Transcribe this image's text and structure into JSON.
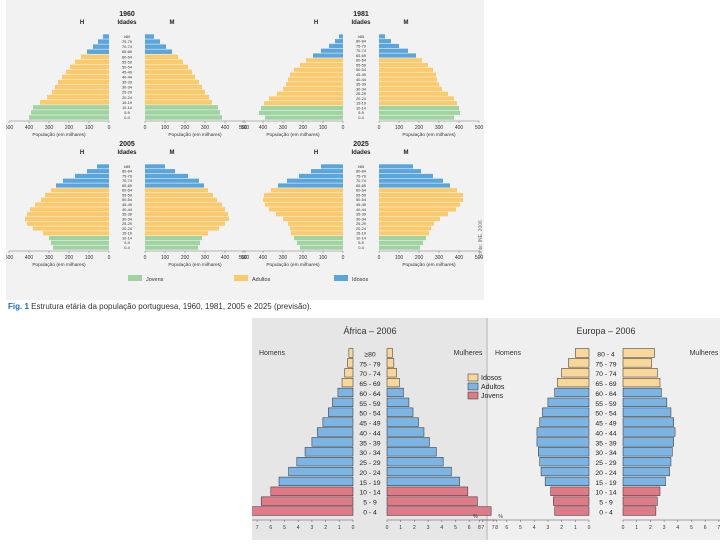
{
  "caption": {
    "label": "Fig. 1",
    "text": "Estrutura etária da população portuguesa, 1960, 1981, 2005 e 2025 (previsão)."
  },
  "credit": "Fonte: INE, 2006",
  "colors": {
    "jovens": "#9fd4a0",
    "adultos": "#fcc96b",
    "idosos": "#5aa5dc",
    "africa_jovens": "#e07a86",
    "africa_adultos": "#7cb4e4",
    "africa_idosos": "#f9d798"
  },
  "chart_data": [
    {
      "type": "bar",
      "subtype": "population-pyramid",
      "title": "1960",
      "header_left": "H",
      "header_center": "Idades",
      "header_right": "M",
      "xlabel_left": "População (em milhares)",
      "xlabel_right": "População (em milhares)",
      "xlim": [
        0,
        500
      ],
      "ticks_left": [
        "500",
        "400",
        "300",
        "200",
        "100",
        "0"
      ],
      "ticks_right": [
        "0",
        "100",
        "200",
        "300",
        "400",
        "500"
      ],
      "categories": [
        "0-4",
        "5-9",
        "10-14",
        "15-19",
        "20-24",
        "25-29",
        "30-34",
        "35-39",
        "40-44",
        "45-49",
        "50-54",
        "55-59",
        "60-64",
        "65-69",
        "70-74",
        "75-79",
        "≥80"
      ],
      "category_labels": [
        "0-4",
        "5-9",
        "10-14",
        "15-19",
        "20-24",
        "25-29",
        "30-34",
        "35-39",
        "40-44",
        "45-49",
        "50-54",
        "55-59",
        "60-64",
        "65-69",
        "70-74",
        "75-79",
        "≥80"
      ],
      "groups": [
        "jovens",
        "jovens",
        "jovens",
        "adultos",
        "adultos",
        "adultos",
        "adultos",
        "adultos",
        "adultos",
        "adultos",
        "adultos",
        "adultos",
        "adultos",
        "idosos",
        "idosos",
        "idosos",
        "idosos"
      ],
      "series": [
        {
          "name": "H",
          "values": [
            400,
            390,
            380,
            345,
            310,
            285,
            270,
            255,
            235,
            215,
            195,
            170,
            140,
            110,
            80,
            55,
            30
          ]
        },
        {
          "name": "M",
          "values": [
            385,
            375,
            365,
            335,
            320,
            300,
            285,
            270,
            250,
            235,
            215,
            190,
            165,
            135,
            105,
            75,
            45
          ]
        }
      ]
    },
    {
      "type": "bar",
      "subtype": "population-pyramid",
      "title": "1981",
      "header_left": "H",
      "header_center": "Idades",
      "header_right": "M",
      "xlabel_left": "População (em milhares)",
      "xlabel_right": "População (em milhares)",
      "xlim": [
        0,
        500
      ],
      "ticks_left": [
        "500",
        "400",
        "300",
        "200",
        "100",
        "0"
      ],
      "ticks_right": [
        "0",
        "100",
        "200",
        "300",
        "400",
        "500"
      ],
      "categories": [
        "0-4",
        "5-9",
        "10-14",
        "15-19",
        "20-24",
        "25-29",
        "30-34",
        "35-39",
        "40-44",
        "45-49",
        "50-54",
        "55-59",
        "60-64",
        "65-69",
        "70-74",
        "75-79",
        "80-84",
        "≥85"
      ],
      "category_labels": [
        "0-4",
        "5-9",
        "10-14",
        "15-19",
        "20-24",
        "25-29",
        "30-34",
        "35-39",
        "40-44",
        "45-49",
        "50-54",
        "55-59",
        "60-64",
        "65-69",
        "70-74",
        "75-79",
        "80-84",
        "≥85"
      ],
      "groups": [
        "jovens",
        "jovens",
        "jovens",
        "adultos",
        "adultos",
        "adultos",
        "adultos",
        "adultos",
        "adultos",
        "adultos",
        "adultos",
        "adultos",
        "adultos",
        "idosos",
        "idosos",
        "idosos",
        "idosos",
        "idosos"
      ],
      "series": [
        {
          "name": "H",
          "values": [
            390,
            420,
            410,
            395,
            370,
            330,
            300,
            285,
            275,
            265,
            245,
            215,
            185,
            150,
            110,
            70,
            40,
            20
          ]
        },
        {
          "name": "M",
          "values": [
            375,
            405,
            400,
            390,
            375,
            345,
            315,
            300,
            290,
            285,
            270,
            245,
            215,
            185,
            145,
            100,
            60,
            30
          ]
        }
      ]
    },
    {
      "type": "bar",
      "subtype": "population-pyramid",
      "title": "2005",
      "header_left": "H",
      "header_center": "Idades",
      "header_right": "M",
      "xlabel_left": "População (em milhares)",
      "xlabel_right": "População (em milhares)",
      "xlim": [
        0,
        500
      ],
      "ticks_left": [
        "500",
        "400",
        "300",
        "200",
        "100",
        "0"
      ],
      "ticks_right": [
        "0",
        "100",
        "200",
        "300",
        "400",
        "500"
      ],
      "categories": [
        "0-4",
        "5-9",
        "10-14",
        "15-19",
        "20-24",
        "25-29",
        "30-34",
        "35-39",
        "40-44",
        "45-49",
        "50-54",
        "55-59",
        "60-64",
        "65-69",
        "70-74",
        "75-79",
        "80-84",
        "≥85"
      ],
      "category_labels": [
        "0-4",
        "5-9",
        "10-14",
        "15-19",
        "20-24",
        "25-29",
        "30-34",
        "35-39",
        "40-44",
        "45-49",
        "50-54",
        "55-59",
        "60-64",
        "65-69",
        "70-74",
        "75-79",
        "80-84",
        "≥85"
      ],
      "groups": [
        "jovens",
        "jovens",
        "jovens",
        "adultos",
        "adultos",
        "adultos",
        "adultos",
        "adultos",
        "adultos",
        "adultos",
        "adultos",
        "adultos",
        "adultos",
        "idosos",
        "idosos",
        "idosos",
        "idosos",
        "idosos"
      ],
      "series": [
        {
          "name": "H",
          "values": [
            280,
            290,
            300,
            330,
            380,
            410,
            420,
            410,
            395,
            370,
            340,
            320,
            290,
            265,
            230,
            170,
            110,
            60
          ]
        },
        {
          "name": "M",
          "values": [
            265,
            275,
            285,
            315,
            370,
            400,
            420,
            415,
            400,
            385,
            360,
            340,
            315,
            295,
            270,
            215,
            150,
            100
          ]
        }
      ]
    },
    {
      "type": "bar",
      "subtype": "population-pyramid",
      "title": "2025",
      "header_left": "H",
      "header_center": "Idades",
      "header_right": "M",
      "xlabel_left": "População (em milhares)",
      "xlabel_right": "População (em milhares)",
      "xlim": [
        0,
        500
      ],
      "ticks_left": [
        "500",
        "400",
        "300",
        "200",
        "100",
        "0"
      ],
      "ticks_right": [
        "0",
        "100",
        "200",
        "300",
        "400",
        "500"
      ],
      "categories": [
        "0-4",
        "5-9",
        "10-14",
        "15-19",
        "20-24",
        "25-29",
        "30-34",
        "35-39",
        "40-44",
        "45-49",
        "50-54",
        "55-59",
        "60-64",
        "65-69",
        "70-74",
        "75-79",
        "80-84",
        "≥85"
      ],
      "category_labels": [
        "0-4",
        "5-9",
        "10-14",
        "15-19",
        "20-24",
        "25-29",
        "30-34",
        "35-39",
        "40-44",
        "45-49",
        "50-54",
        "55-59",
        "60-64",
        "65-69",
        "70-74",
        "75-79",
        "80-84",
        "≥85"
      ],
      "groups": [
        "jovens",
        "jovens",
        "jovens",
        "adultos",
        "adultos",
        "adultos",
        "adultos",
        "adultos",
        "adultos",
        "adultos",
        "adultos",
        "adultos",
        "adultos",
        "idosos",
        "idosos",
        "idosos",
        "idosos",
        "idosos"
      ],
      "series": [
        {
          "name": "H",
          "values": [
            215,
            230,
            245,
            260,
            265,
            275,
            300,
            335,
            370,
            390,
            400,
            395,
            360,
            325,
            280,
            220,
            160,
            110
          ]
        },
        {
          "name": "M",
          "values": [
            205,
            220,
            235,
            250,
            260,
            275,
            305,
            345,
            385,
            405,
            420,
            420,
            390,
            355,
            320,
            270,
            210,
            170
          ]
        }
      ]
    },
    {
      "type": "bar",
      "subtype": "population-pyramid",
      "title": "África – 2006",
      "left_label": "Homens",
      "right_label": "Mulheres",
      "axis_unit": "%",
      "xlim": [
        0,
        8
      ],
      "ticks_left": [
        "8",
        "7",
        "6",
        "5",
        "4",
        "3",
        "2",
        "1",
        "0"
      ],
      "ticks_right": [
        "0",
        "1",
        "2",
        "3",
        "4",
        "5",
        "6",
        "7",
        "8"
      ],
      "categories": [
        "0-4",
        "5-9",
        "10-14",
        "15-19",
        "20-24",
        "25-29",
        "30-34",
        "35-39",
        "40-44",
        "45-49",
        "50-54",
        "55-59",
        "60-64",
        "65-69",
        "70-74",
        "75-79",
        "≥80"
      ],
      "category_labels": [
        "0 - 4",
        "5 - 9",
        "10 - 14",
        "15 - 19",
        "20 - 24",
        "25 - 29",
        "30 - 34",
        "35 - 39",
        "40 - 44",
        "45 - 49",
        "50 - 54",
        "55 - 59",
        "60 - 64",
        "65 - 69",
        "70 - 74",
        "75 - 79",
        "≥80"
      ],
      "groups": [
        "jovens",
        "jovens",
        "jovens",
        "adultos",
        "adultos",
        "adultos",
        "adultos",
        "adultos",
        "adultos",
        "adultos",
        "adultos",
        "adultos",
        "adultos",
        "idosos",
        "idosos",
        "idosos",
        "idosos"
      ],
      "series": [
        {
          "name": "Homens",
          "values": [
            7.8,
            6.7,
            6.0,
            5.4,
            4.7,
            4.1,
            3.5,
            3.0,
            2.6,
            2.2,
            1.8,
            1.5,
            1.1,
            0.8,
            0.6,
            0.4,
            0.3
          ]
        },
        {
          "name": "Mulheres",
          "values": [
            7.6,
            6.6,
            5.9,
            5.3,
            4.7,
            4.1,
            3.6,
            3.1,
            2.7,
            2.3,
            1.9,
            1.6,
            1.2,
            0.9,
            0.7,
            0.5,
            0.4
          ]
        }
      ]
    },
    {
      "type": "bar",
      "subtype": "population-pyramid",
      "title": "Europa – 2006",
      "left_label": "Homens",
      "right_label": "Mulheres",
      "axis_unit": "%",
      "xlim": [
        0,
        8
      ],
      "ticks_left": [
        "8",
        "7",
        "6",
        "5",
        "4",
        "3",
        "2",
        "1",
        "0"
      ],
      "ticks_right": [
        "0",
        "1",
        "2",
        "3",
        "4",
        "5",
        "6",
        "7",
        "8"
      ],
      "categories": [
        "0-4",
        "5-9",
        "10-14",
        "15-19",
        "20-24",
        "25-29",
        "30-34",
        "35-39",
        "40-44",
        "45-49",
        "50-54",
        "55-59",
        "60-64",
        "65-69",
        "70-74",
        "75-79",
        "80-4"
      ],
      "category_labels": [
        "0 - 4",
        "5 - 9",
        "10 - 14",
        "15 - 19",
        "20 - 24",
        "25 - 29",
        "30 - 34",
        "35 - 39",
        "40 - 44",
        "45 - 49",
        "50 - 54",
        "55 - 59",
        "60 - 64",
        "65 - 69",
        "70 - 74",
        "75 - 79",
        "80 - 4"
      ],
      "groups": [
        "jovens",
        "jovens",
        "jovens",
        "adultos",
        "adultos",
        "adultos",
        "adultos",
        "adultos",
        "adultos",
        "adultos",
        "adultos",
        "adultos",
        "adultos",
        "idosos",
        "idosos",
        "idosos",
        "idosos"
      ],
      "series": [
        {
          "name": "Homens",
          "values": [
            2.5,
            2.6,
            2.8,
            3.2,
            3.5,
            3.6,
            3.7,
            3.8,
            3.8,
            3.6,
            3.4,
            3.0,
            2.5,
            2.3,
            2.0,
            1.5,
            1.0
          ]
        },
        {
          "name": "Mulheres",
          "values": [
            2.4,
            2.5,
            2.7,
            3.1,
            3.4,
            3.5,
            3.6,
            3.7,
            3.8,
            3.7,
            3.5,
            3.2,
            2.8,
            2.7,
            2.5,
            2.1,
            2.3
          ]
        }
      ]
    }
  ],
  "legend_top": [
    {
      "key": "jovens",
      "label": "Jovens"
    },
    {
      "key": "adultos",
      "label": "Adultos"
    },
    {
      "key": "idosos",
      "label": "Idosos"
    }
  ],
  "legend_bottom": [
    {
      "key": "africa_idosos",
      "label": "Idosos"
    },
    {
      "key": "africa_adultos",
      "label": "Adultos"
    },
    {
      "key": "africa_jovens",
      "label": "Jovens"
    }
  ]
}
